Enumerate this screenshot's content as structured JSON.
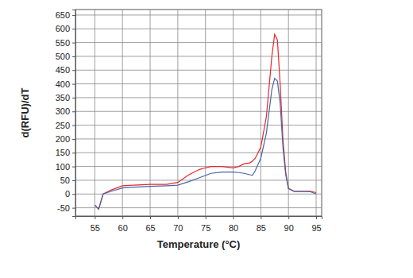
{
  "chart_data": {
    "type": "line",
    "x_label": "Temperature (°C)",
    "y_label": "d(RFU)/dT",
    "x": [
      55,
      55.7,
      56.5,
      58,
      60,
      62,
      65,
      68,
      70,
      72,
      74,
      76,
      78,
      80,
      81,
      82,
      83,
      83.5,
      84,
      85,
      86,
      87,
      87.5,
      88,
      88.5,
      89,
      89.5,
      90,
      91,
      93,
      94,
      95
    ],
    "series": [
      {
        "color": "#e8262e",
        "values": [
          -40,
          -55,
          0,
          15,
          30,
          32,
          35,
          35,
          42,
          70,
          90,
          100,
          100,
          95,
          100,
          110,
          113,
          120,
          130,
          170,
          280,
          500,
          580,
          560,
          400,
          200,
          80,
          20,
          10,
          10,
          10,
          5
        ]
      },
      {
        "color": "#4466a8",
        "values": [
          -40,
          -55,
          0,
          10,
          22,
          25,
          28,
          30,
          32,
          45,
          60,
          75,
          80,
          80,
          78,
          75,
          70,
          68,
          85,
          130,
          220,
          380,
          420,
          410,
          330,
          170,
          70,
          20,
          10,
          10,
          8,
          0
        ]
      }
    ],
    "xlim": [
      51.5,
      96
    ],
    "ylim": [
      -80,
      670
    ],
    "xticks": [
      55,
      60,
      65,
      70,
      75,
      80,
      85,
      90,
      95
    ],
    "yticks": [
      -50,
      0,
      50,
      100,
      150,
      200,
      250,
      300,
      350,
      400,
      450,
      500,
      550,
      600,
      650
    ],
    "grid": true
  }
}
